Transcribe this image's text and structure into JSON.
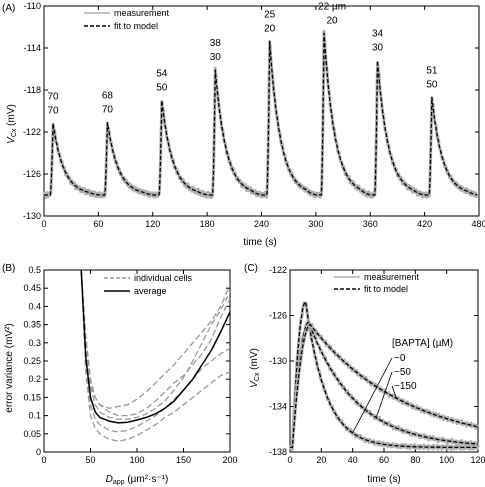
{
  "chart_data": [
    {
      "panel": "(A)",
      "type": "line",
      "xlabel": "time (s)",
      "ylabel": "V",
      "ylabel_sub": "Cx",
      "ylabel_unit": "(mV)",
      "xlim": [
        0,
        480
      ],
      "ylim": [
        -130,
        -110
      ],
      "xticks": [
        0,
        60,
        120,
        180,
        240,
        300,
        360,
        420,
        480
      ],
      "yticks": [
        -130,
        -126,
        -122,
        -118,
        -114,
        -110
      ],
      "legend": {
        "position": "top-left",
        "entries": [
          "measurement",
          "fit to model"
        ]
      },
      "baseline": -128,
      "tau_decay": 12,
      "pulses": [
        {
          "t": 10,
          "peak": -121.2,
          "label_top": "70",
          "label_bottom": "70"
        },
        {
          "t": 70,
          "peak": -121.1,
          "label_top": "68",
          "label_bottom": "70"
        },
        {
          "t": 130,
          "peak": -119.0,
          "label_top": "54",
          "label_bottom": "50"
        },
        {
          "t": 189,
          "peak": -116.1,
          "label_top": "38",
          "label_bottom": "30"
        },
        {
          "t": 249,
          "peak": -113.4,
          "label_top": "25",
          "label_bottom": "20"
        },
        {
          "t": 309,
          "peak": -112.6,
          "label_top": "22 µm",
          "label_bottom": "20"
        },
        {
          "t": 368,
          "peak": -115.2,
          "label_top": "34",
          "label_bottom": "30"
        },
        {
          "t": 428,
          "peak": -118.7,
          "label_top": "51",
          "label_bottom": "50"
        }
      ],
      "series": [
        {
          "name": "measurement",
          "color": "#b0b0b0",
          "style": "solid"
        },
        {
          "name": "fit to model",
          "color": "#000000",
          "style": "dashed"
        }
      ]
    },
    {
      "panel": "(B)",
      "type": "line",
      "xlabel": "D",
      "xlabel_sub": "app",
      "xlabel_unit": "(µm²·s⁻¹)",
      "ylabel": "error variance (mV²)",
      "xlim": [
        0,
        200
      ],
      "ylim": [
        0,
        0.5
      ],
      "xticks": [
        0,
        50,
        100,
        150,
        200
      ],
      "yticks": [
        0,
        0.05,
        0.1,
        0.15,
        0.2,
        0.25,
        0.3,
        0.35,
        0.4,
        0.45,
        0.5
      ],
      "ytick_labels": [
        "0",
        "0.05",
        "0.1",
        "0.15",
        "0.2",
        "0.25",
        "0.3",
        "0.35",
        "0.4",
        "0.45",
        "0.5"
      ],
      "legend": {
        "position": "top-right",
        "entries": [
          "individual cells",
          "average"
        ]
      },
      "x": [
        40,
        45,
        50,
        55,
        60,
        70,
        80,
        90,
        100,
        110,
        120,
        130,
        140,
        150,
        160,
        170,
        180,
        190,
        200
      ],
      "series": [
        {
          "name": "individual cells",
          "color": "#999999",
          "style": "dashed",
          "values": [
            0.5,
            0.32,
            0.2,
            0.15,
            0.13,
            0.11,
            0.1,
            0.1,
            0.105,
            0.12,
            0.14,
            0.165,
            0.19,
            0.21,
            0.24,
            0.27,
            0.31,
            0.37,
            0.42
          ]
        },
        {
          "name": "individual cells",
          "color": "#999999",
          "style": "dashed",
          "values": [
            0.5,
            0.3,
            0.18,
            0.13,
            0.11,
            0.095,
            0.09,
            0.09,
            0.095,
            0.105,
            0.12,
            0.14,
            0.17,
            0.205,
            0.25,
            0.3,
            0.35,
            0.39,
            0.44
          ]
        },
        {
          "name": "individual cells",
          "color": "#999999",
          "style": "dashed",
          "values": [
            0.5,
            0.26,
            0.13,
            0.09,
            0.075,
            0.06,
            0.055,
            0.06,
            0.07,
            0.085,
            0.1,
            0.12,
            0.145,
            0.17,
            0.2,
            0.23,
            0.25,
            0.27,
            0.285
          ]
        },
        {
          "name": "individual cells",
          "color": "#999999",
          "style": "dashed",
          "values": [
            0.5,
            0.22,
            0.1,
            0.065,
            0.05,
            0.035,
            0.03,
            0.035,
            0.045,
            0.06,
            0.075,
            0.095,
            0.11,
            0.13,
            0.15,
            0.17,
            0.19,
            0.21,
            0.22
          ]
        },
        {
          "name": "individual cells",
          "color": "#999999",
          "style": "dashed",
          "values": [
            0.5,
            0.3,
            0.19,
            0.15,
            0.13,
            0.12,
            0.125,
            0.13,
            0.145,
            0.165,
            0.19,
            0.215,
            0.24,
            0.27,
            0.3,
            0.33,
            0.36,
            0.4,
            0.46
          ]
        },
        {
          "name": "average",
          "color": "#000000",
          "style": "solid",
          "values": [
            0.5,
            0.26,
            0.15,
            0.11,
            0.095,
            0.085,
            0.08,
            0.082,
            0.088,
            0.095,
            0.105,
            0.12,
            0.14,
            0.17,
            0.2,
            0.24,
            0.28,
            0.33,
            0.385
          ]
        }
      ]
    },
    {
      "panel": "(C)",
      "type": "line",
      "xlabel": "time (s)",
      "ylabel": "V",
      "ylabel_sub": "Cx",
      "ylabel_unit": "(mV)",
      "xlim": [
        0,
        120
      ],
      "ylim": [
        -138,
        -122
      ],
      "xticks": [
        0,
        20,
        40,
        60,
        80,
        100,
        120
      ],
      "yticks": [
        -138,
        -134,
        -130,
        -126,
        -122
      ],
      "legend": {
        "position": "top-right",
        "entries": [
          "measurement",
          "fit to model"
        ]
      },
      "annotation_title": "[BAPTA] (µM)",
      "baseline": -137.6,
      "curves": [
        {
          "label": "~0",
          "peak": -124.8,
          "t_peak": 10,
          "tau": 13
        },
        {
          "label": "~50",
          "peak": -126.6,
          "t_peak": 12,
          "tau": 30
        },
        {
          "label": "~150",
          "peak": -126.8,
          "t_peak": 13,
          "tau": 60
        }
      ],
      "series": [
        {
          "name": "measurement",
          "color": "#b0b0b0",
          "style": "solid"
        },
        {
          "name": "fit to model",
          "color": "#000000",
          "style": "dashed"
        }
      ]
    }
  ]
}
